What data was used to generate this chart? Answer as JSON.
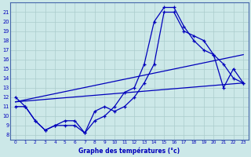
{
  "xlabel": "Graphe des températures (°c)",
  "bg_color": "#cce8e8",
  "grid_color": "#aacccc",
  "line_color": "#0000bb",
  "xlim": [
    -0.5,
    23.5
  ],
  "ylim": [
    7.5,
    22
  ],
  "xticks": [
    0,
    1,
    2,
    3,
    4,
    5,
    6,
    7,
    8,
    9,
    10,
    11,
    12,
    13,
    14,
    15,
    16,
    17,
    18,
    19,
    20,
    21,
    22,
    23
  ],
  "yticks": [
    8,
    9,
    10,
    11,
    12,
    13,
    14,
    15,
    16,
    17,
    18,
    19,
    20,
    21
  ],
  "series1_x": [
    0,
    1,
    2,
    3,
    4,
    5,
    6,
    7,
    8,
    9,
    10,
    11,
    12,
    13,
    14,
    15,
    16,
    17,
    18,
    19,
    20,
    21,
    22,
    23
  ],
  "series1_y": [
    12,
    11,
    9.5,
    8.5,
    9,
    9,
    9,
    8.2,
    9.5,
    10,
    11,
    12.5,
    13,
    15.5,
    20,
    21.5,
    21.5,
    19.5,
    18,
    17,
    16.5,
    15.5,
    14,
    13.5
  ],
  "series2_x": [
    0,
    1,
    2,
    3,
    4,
    5,
    6,
    7,
    8,
    9,
    10,
    11,
    12,
    13,
    14,
    15,
    16,
    17,
    18,
    19,
    20,
    21,
    22,
    23
  ],
  "series2_y": [
    11,
    11,
    9.5,
    8.5,
    9,
    9.5,
    9.5,
    8.2,
    10.5,
    11,
    10.5,
    11,
    12,
    13.5,
    15.5,
    21,
    21,
    19,
    18.5,
    18,
    16.5,
    13,
    15,
    13.5
  ],
  "series3_x": [
    0,
    23
  ],
  "series3_y": [
    11.5,
    13.5
  ],
  "series4_x": [
    0,
    23
  ],
  "series4_y": [
    11.5,
    16.5
  ]
}
